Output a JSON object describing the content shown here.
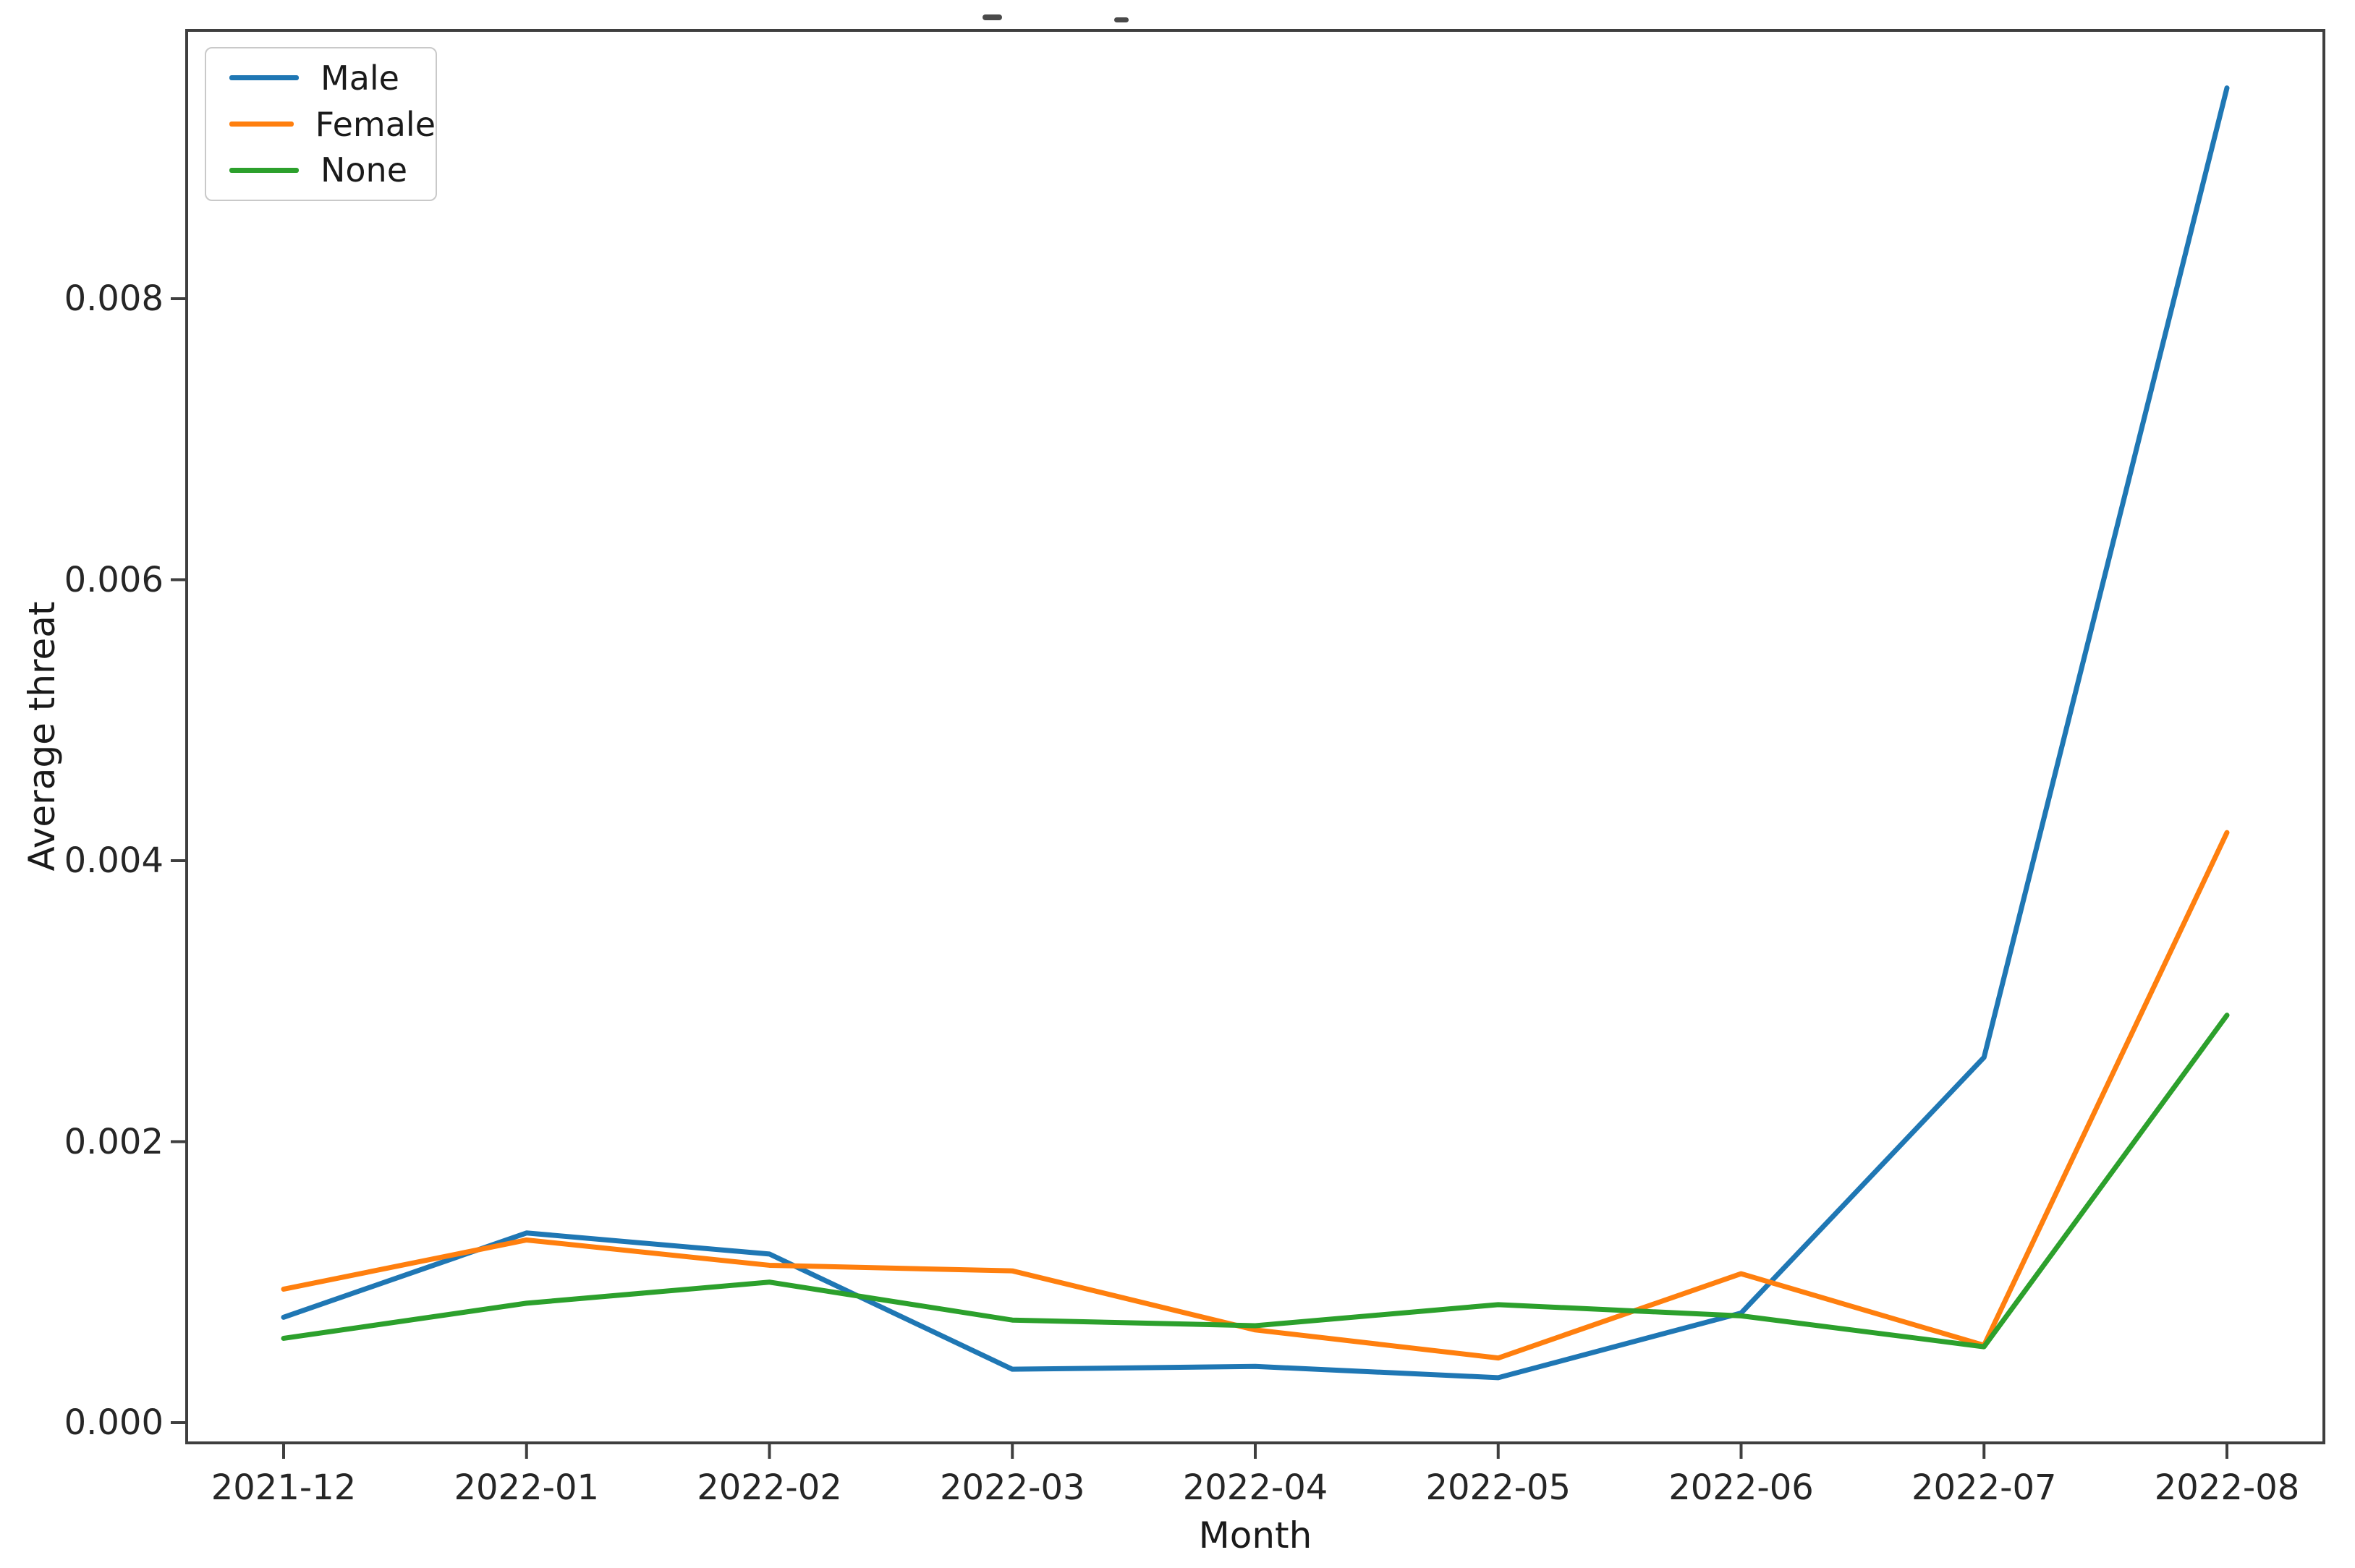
{
  "figure": {
    "background": "#ffffff",
    "note_top_fragments": "cropped-title-remnants"
  },
  "chart_data": {
    "type": "line",
    "title": "",
    "xlabel": "Month",
    "ylabel": "Average threat",
    "categories": [
      "2021-12",
      "2022-01",
      "2022-02",
      "2022-03",
      "2022-04",
      "2022-05",
      "2022-06",
      "2022-07",
      "2022-08"
    ],
    "series": [
      {
        "name": "Male",
        "color": "#1f77b4",
        "values": [
          0.00075,
          0.00135,
          0.0012,
          0.00038,
          0.0004,
          0.00032,
          0.00078,
          0.0026,
          0.0095
        ]
      },
      {
        "name": "Female",
        "color": "#ff7f0e",
        "values": [
          0.00095,
          0.0013,
          0.00112,
          0.00108,
          0.00066,
          0.00046,
          0.00106,
          0.00055,
          0.0042
        ]
      },
      {
        "name": "None",
        "color": "#2ca02c",
        "values": [
          0.0006,
          0.00085,
          0.001,
          0.00073,
          0.00069,
          0.00084,
          0.00076,
          0.00054,
          0.0029
        ]
      }
    ],
    "y_ticks": [
      0.0,
      0.002,
      0.004,
      0.006,
      0.008
    ],
    "y_tick_labels": [
      "0.000",
      "0.002",
      "0.004",
      "0.006",
      "0.008"
    ],
    "xlim": [
      -0.4,
      8.4
    ],
    "ylim": [
      -0.00014,
      0.00996
    ],
    "grid": false,
    "legend_position": "upper left",
    "axis_color": "#3f3f3f",
    "tick_text_color": "#262626"
  }
}
